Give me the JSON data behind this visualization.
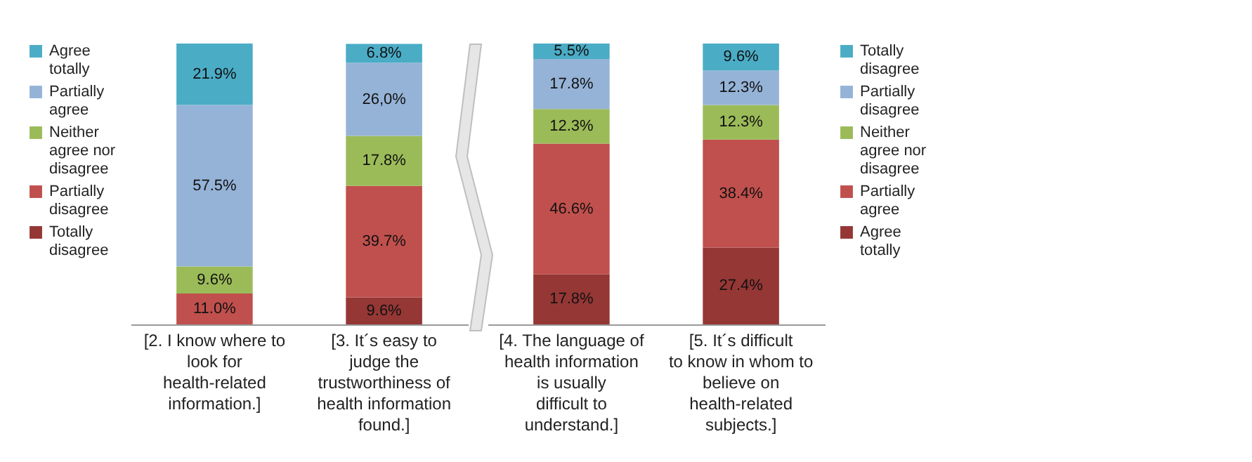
{
  "chart_data": [
    {
      "type": "bar",
      "stacked": true,
      "legend": "left",
      "tick_labels": "x",
      "ylim": [
        0,
        100
      ],
      "categories": [
        "[2. I know where to look for health-related information.]",
        "[3. It´s easy to judge the trustworthiness of health information found.]"
      ],
      "series": [
        {
          "name": "Totally disagree",
          "color": "#953735",
          "values": [
            null,
            9.6
          ],
          "value_labels": [
            null,
            "9.6%"
          ]
        },
        {
          "name": "Partially disagree",
          "color": "#c0504d",
          "values": [
            11.0,
            39.7
          ],
          "value_labels": [
            "11.0%",
            "39.7%"
          ]
        },
        {
          "name": "Neither agree nor disagree",
          "color": "#9bbb59",
          "values": [
            9.6,
            17.8
          ],
          "value_labels": [
            "9.6%",
            "17.8%"
          ]
        },
        {
          "name": "Partially agree",
          "color": "#95b3d7",
          "values": [
            57.5,
            26.0
          ],
          "value_labels": [
            "57.5%",
            "26,0%"
          ]
        },
        {
          "name": "Agree totally",
          "color": "#4bacc6",
          "values": [
            21.9,
            6.8
          ],
          "value_labels": [
            "21.9%",
            "6.8%"
          ]
        }
      ]
    },
    {
      "type": "bar",
      "stacked": true,
      "legend": "right",
      "tick_labels": "x",
      "ylim": [
        0,
        100
      ],
      "categories": [
        "[4. The language of health information is usually difficult to understand.]",
        "[5. It´s difficult to know in whom to believe on health-related subjects.]"
      ],
      "series": [
        {
          "name": "Agree totally",
          "color": "#953735",
          "values": [
            17.8,
            27.4
          ],
          "value_labels": [
            "17.8%",
            "27.4%"
          ]
        },
        {
          "name": "Partially agree",
          "color": "#c0504d",
          "values": [
            46.6,
            38.4
          ],
          "value_labels": [
            "46.6%",
            "38.4%"
          ]
        },
        {
          "name": "Neither agree nor disagree",
          "color": "#9bbb59",
          "values": [
            12.3,
            12.3
          ],
          "value_labels": [
            "12.3%",
            "12.3%"
          ]
        },
        {
          "name": "Partially disagree",
          "color": "#95b3d7",
          "values": [
            17.8,
            12.3
          ],
          "value_labels": [
            "17.8%",
            "12.3%"
          ]
        },
        {
          "name": "Totally disagree",
          "color": "#4bacc6",
          "values": [
            5.5,
            9.6
          ],
          "value_labels": [
            "5.5%",
            "9.6%"
          ]
        }
      ]
    }
  ]
}
